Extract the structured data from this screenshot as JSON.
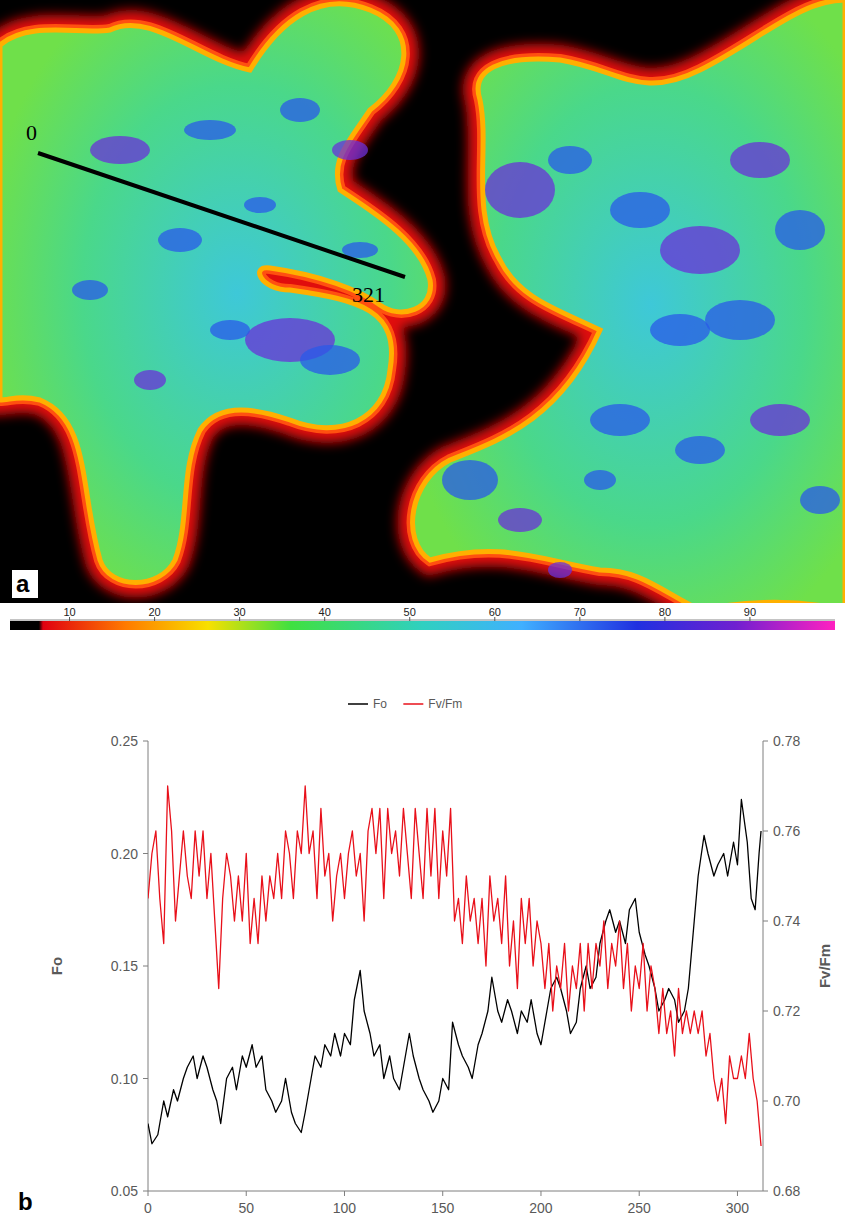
{
  "chart_data": [
    {
      "type": "image",
      "label": "a",
      "transect": [
        0,
        321
      ],
      "colorbar_range": [
        3,
        100
      ],
      "colorbar_ticks": [
        10,
        20,
        30,
        40,
        50,
        60,
        70,
        80,
        90
      ]
    },
    {
      "type": "line",
      "label": "b",
      "legend": "top",
      "xlim": [
        0,
        313
      ],
      "xticks": [
        0,
        50,
        100,
        150,
        200,
        250,
        300
      ],
      "ylim": [
        0.05,
        0.25
      ],
      "yticks": [
        0.05,
        {
          "value": 0.1,
          "label": "0.10"
        },
        0.15,
        {
          "value": 0.2,
          "label": "0.20"
        },
        0.25
      ],
      "y2lim": [
        0.68,
        0.78
      ],
      "y2ticks": [
        0.68,
        {
          "value": 0.7,
          "label": "0.70"
        },
        0.72,
        0.74,
        0.76,
        0.78
      ],
      "y_label": "Fo",
      "y2_label": "Fv/Fm",
      "series": [
        {
          "name": "Fo",
          "color": "#000000",
          "axis": "y",
          "x": [
            0,
            2,
            5,
            8,
            10,
            13,
            15,
            18,
            20,
            23,
            25,
            28,
            30,
            33,
            35,
            37,
            40,
            43,
            45,
            48,
            50,
            53,
            55,
            58,
            60,
            63,
            65,
            68,
            70,
            73,
            75,
            78,
            80,
            83,
            85,
            88,
            90,
            93,
            95,
            98,
            100,
            103,
            105,
            108,
            110,
            113,
            115,
            118,
            120,
            123,
            125,
            128,
            130,
            133,
            135,
            138,
            140,
            143,
            145,
            148,
            150,
            153,
            155,
            158,
            160,
            163,
            165,
            168,
            170,
            173,
            175,
            178,
            180,
            183,
            185,
            188,
            190,
            193,
            195,
            198,
            200,
            203,
            205,
            208,
            210,
            213,
            215,
            218,
            220,
            223,
            225,
            228,
            230,
            233,
            235,
            238,
            240,
            243,
            245,
            248,
            250,
            253,
            255,
            258,
            260,
            263,
            265,
            268,
            270,
            273,
            275,
            278,
            280,
            283,
            285,
            288,
            290,
            293,
            295,
            298,
            300,
            302,
            305,
            307,
            309,
            311,
            312
          ],
          "values": [
            0.08,
            0.071,
            0.075,
            0.09,
            0.083,
            0.095,
            0.09,
            0.1,
            0.105,
            0.11,
            0.1,
            0.11,
            0.105,
            0.095,
            0.09,
            0.08,
            0.1,
            0.105,
            0.095,
            0.11,
            0.105,
            0.115,
            0.105,
            0.11,
            0.095,
            0.09,
            0.085,
            0.09,
            0.1,
            0.085,
            0.08,
            0.076,
            0.085,
            0.1,
            0.11,
            0.105,
            0.115,
            0.11,
            0.12,
            0.11,
            0.12,
            0.115,
            0.135,
            0.148,
            0.13,
            0.12,
            0.11,
            0.115,
            0.1,
            0.11,
            0.1,
            0.095,
            0.105,
            0.12,
            0.11,
            0.1,
            0.095,
            0.09,
            0.085,
            0.09,
            0.1,
            0.095,
            0.125,
            0.115,
            0.11,
            0.105,
            0.1,
            0.115,
            0.12,
            0.13,
            0.145,
            0.13,
            0.125,
            0.135,
            0.13,
            0.12,
            0.13,
            0.125,
            0.135,
            0.12,
            0.115,
            0.13,
            0.14,
            0.145,
            0.14,
            0.13,
            0.12,
            0.125,
            0.14,
            0.15,
            0.14,
            0.145,
            0.16,
            0.17,
            0.175,
            0.165,
            0.17,
            0.16,
            0.175,
            0.18,
            0.165,
            0.155,
            0.15,
            0.14,
            0.13,
            0.135,
            0.14,
            0.135,
            0.125,
            0.13,
            0.14,
            0.17,
            0.19,
            0.208,
            0.2,
            0.19,
            0.195,
            0.2,
            0.19,
            0.205,
            0.195,
            0.224,
            0.205,
            0.18,
            0.175,
            0.2,
            0.21
          ]
        },
        {
          "name": "Fv/Fm",
          "color": "#e8101a",
          "axis": "y2",
          "x": [
            0,
            2,
            4,
            6,
            8,
            10,
            12,
            14,
            16,
            18,
            20,
            22,
            24,
            26,
            28,
            30,
            32,
            34,
            36,
            38,
            40,
            42,
            44,
            46,
            48,
            50,
            52,
            54,
            56,
            58,
            60,
            62,
            64,
            66,
            68,
            70,
            72,
            74,
            76,
            78,
            80,
            82,
            84,
            86,
            88,
            90,
            92,
            94,
            96,
            98,
            100,
            102,
            104,
            106,
            108,
            110,
            112,
            114,
            116,
            118,
            120,
            122,
            124,
            126,
            128,
            130,
            132,
            134,
            136,
            138,
            140,
            142,
            144,
            146,
            148,
            150,
            152,
            154,
            156,
            158,
            160,
            162,
            164,
            166,
            168,
            170,
            172,
            174,
            176,
            178,
            180,
            182,
            184,
            186,
            188,
            190,
            192,
            194,
            196,
            198,
            200,
            202,
            204,
            206,
            208,
            210,
            212,
            214,
            216,
            218,
            220,
            222,
            224,
            226,
            228,
            230,
            232,
            234,
            236,
            238,
            240,
            242,
            244,
            246,
            248,
            250,
            252,
            254,
            256,
            258,
            260,
            262,
            264,
            266,
            268,
            270,
            272,
            274,
            276,
            278,
            280,
            282,
            284,
            286,
            288,
            290,
            292,
            294,
            296,
            298,
            300,
            302,
            304,
            306,
            308,
            310,
            312
          ],
          "values": [
            0.745,
            0.755,
            0.76,
            0.745,
            0.735,
            0.77,
            0.76,
            0.74,
            0.75,
            0.76,
            0.75,
            0.745,
            0.76,
            0.75,
            0.76,
            0.745,
            0.755,
            0.74,
            0.725,
            0.745,
            0.755,
            0.75,
            0.74,
            0.75,
            0.74,
            0.755,
            0.735,
            0.745,
            0.735,
            0.75,
            0.74,
            0.75,
            0.745,
            0.755,
            0.745,
            0.76,
            0.755,
            0.745,
            0.76,
            0.755,
            0.77,
            0.755,
            0.76,
            0.745,
            0.765,
            0.75,
            0.755,
            0.74,
            0.75,
            0.755,
            0.745,
            0.755,
            0.76,
            0.75,
            0.755,
            0.74,
            0.76,
            0.765,
            0.755,
            0.765,
            0.745,
            0.765,
            0.755,
            0.76,
            0.75,
            0.765,
            0.755,
            0.745,
            0.765,
            0.755,
            0.745,
            0.765,
            0.75,
            0.765,
            0.745,
            0.76,
            0.75,
            0.765,
            0.74,
            0.745,
            0.735,
            0.75,
            0.74,
            0.745,
            0.735,
            0.745,
            0.73,
            0.75,
            0.74,
            0.745,
            0.735,
            0.75,
            0.73,
            0.74,
            0.725,
            0.745,
            0.735,
            0.745,
            0.73,
            0.74,
            0.735,
            0.725,
            0.735,
            0.72,
            0.73,
            0.725,
            0.735,
            0.72,
            0.73,
            0.725,
            0.735,
            0.72,
            0.735,
            0.725,
            0.735,
            0.73,
            0.74,
            0.725,
            0.735,
            0.73,
            0.74,
            0.725,
            0.735,
            0.72,
            0.73,
            0.725,
            0.735,
            0.72,
            0.73,
            0.725,
            0.715,
            0.725,
            0.715,
            0.72,
            0.71,
            0.725,
            0.715,
            0.72,
            0.715,
            0.72,
            0.715,
            0.72,
            0.71,
            0.715,
            0.705,
            0.7,
            0.705,
            0.695,
            0.71,
            0.705,
            0.705,
            0.71,
            0.705,
            0.715,
            0.705,
            0.7,
            0.69
          ]
        }
      ]
    }
  ]
}
